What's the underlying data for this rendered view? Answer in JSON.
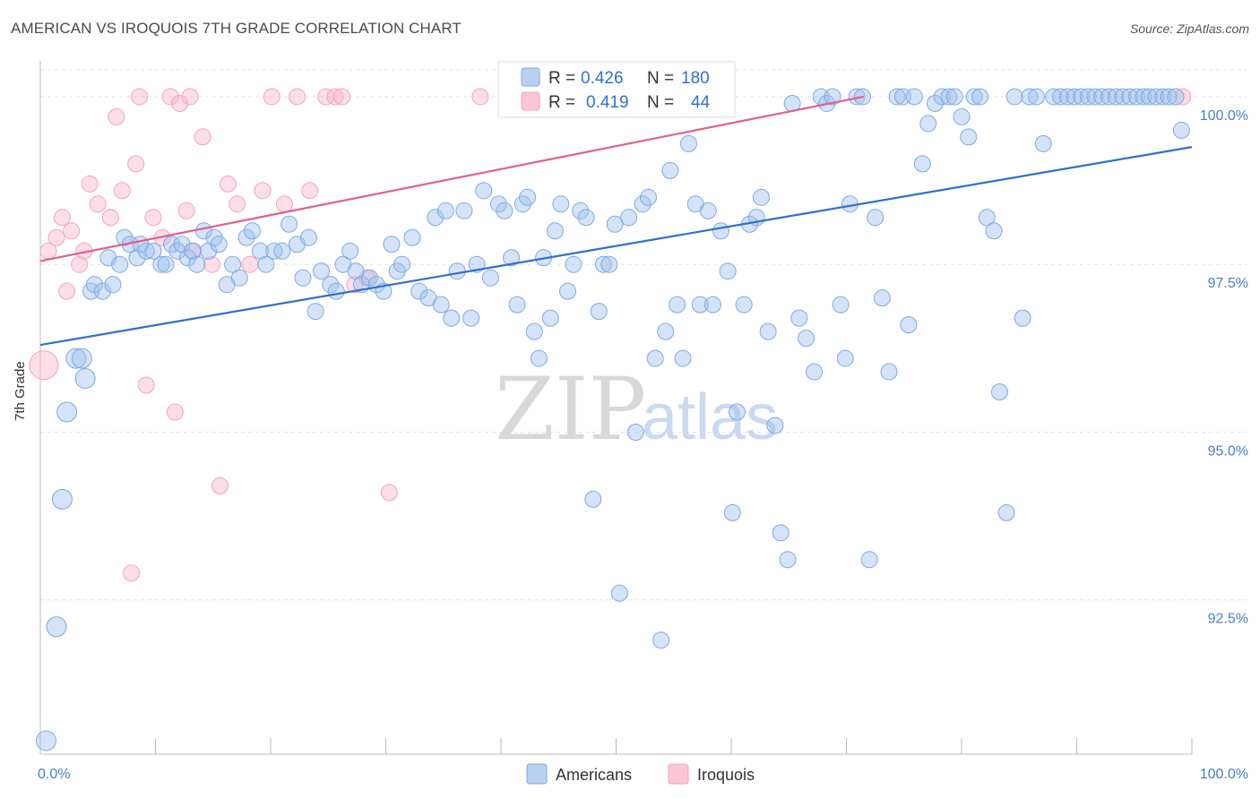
{
  "title": "AMERICAN VS IROQUOIS 7TH GRADE CORRELATION CHART",
  "source": "Source: ZipAtlas.com",
  "chart_data": {
    "type": "scatter",
    "title": "AMERICAN VS IROQUOIS 7TH GRADE CORRELATION CHART",
    "xlabel": "",
    "ylabel": "7th Grade",
    "xlim": [
      0,
      100
    ],
    "ylim": [
      90.2,
      100.4
    ],
    "x_tick_labels": [
      "0.0%",
      "100.0%"
    ],
    "y_ticks": [
      92.5,
      95.0,
      97.5,
      100.0
    ],
    "y_tick_labels": [
      "92.5%",
      "95.0%",
      "97.5%",
      "100.0%"
    ],
    "grid": true,
    "legend": {
      "americans": {
        "r_label": "R = ",
        "r": "0.426",
        "n_label": "N = ",
        "n": "180"
      },
      "iroquois": {
        "r_label": "R = ",
        "r": "0.419",
        "n_label": "N = ",
        "n": "44"
      }
    },
    "series": [
      {
        "name": "Americans",
        "color": "#7fa9e3",
        "trend_color": "#2f6fd0",
        "trend": {
          "x": [
            0,
            100
          ],
          "y": [
            96.3,
            99.25
          ]
        },
        "points": [
          [
            0.5,
            90.4
          ],
          [
            1.4,
            92.1
          ],
          [
            1.9,
            94.0
          ],
          [
            2.3,
            95.3
          ],
          [
            3.1,
            96.1
          ],
          [
            3.6,
            96.1
          ],
          [
            3.9,
            95.8
          ],
          [
            4.4,
            97.1
          ],
          [
            4.7,
            97.2
          ],
          [
            5.4,
            97.1
          ],
          [
            5.9,
            97.6
          ],
          [
            6.3,
            97.2
          ],
          [
            6.9,
            97.5
          ],
          [
            7.3,
            97.9
          ],
          [
            7.8,
            97.8
          ],
          [
            8.4,
            97.6
          ],
          [
            8.7,
            97.8
          ],
          [
            9.2,
            97.7
          ],
          [
            9.8,
            97.7
          ],
          [
            10.5,
            97.5
          ],
          [
            10.9,
            97.5
          ],
          [
            11.4,
            97.8
          ],
          [
            11.9,
            97.7
          ],
          [
            12.3,
            97.8
          ],
          [
            12.8,
            97.6
          ],
          [
            13.2,
            97.7
          ],
          [
            13.6,
            97.5
          ],
          [
            14.2,
            98.0
          ],
          [
            14.6,
            97.7
          ],
          [
            15.1,
            97.9
          ],
          [
            15.5,
            97.8
          ],
          [
            16.2,
            97.2
          ],
          [
            16.7,
            97.5
          ],
          [
            17.3,
            97.3
          ],
          [
            17.9,
            97.9
          ],
          [
            18.4,
            98.0
          ],
          [
            19.1,
            97.7
          ],
          [
            19.6,
            97.5
          ],
          [
            20.3,
            97.7
          ],
          [
            21.0,
            97.7
          ],
          [
            21.6,
            98.1
          ],
          [
            22.3,
            97.8
          ],
          [
            22.8,
            97.3
          ],
          [
            23.3,
            97.9
          ],
          [
            23.9,
            96.8
          ],
          [
            24.4,
            97.4
          ],
          [
            25.2,
            97.2
          ],
          [
            25.7,
            97.1
          ],
          [
            26.3,
            97.5
          ],
          [
            26.9,
            97.7
          ],
          [
            27.4,
            97.4
          ],
          [
            27.9,
            97.2
          ],
          [
            28.6,
            97.3
          ],
          [
            29.2,
            97.2
          ],
          [
            29.8,
            97.1
          ],
          [
            30.5,
            97.8
          ],
          [
            31.0,
            97.4
          ],
          [
            31.4,
            97.5
          ],
          [
            32.3,
            97.9
          ],
          [
            32.9,
            97.1
          ],
          [
            33.7,
            97.0
          ],
          [
            34.3,
            98.2
          ],
          [
            34.8,
            96.9
          ],
          [
            35.2,
            98.3
          ],
          [
            35.7,
            96.7
          ],
          [
            36.2,
            97.4
          ],
          [
            36.8,
            98.3
          ],
          [
            37.4,
            96.7
          ],
          [
            37.9,
            97.5
          ],
          [
            38.5,
            98.6
          ],
          [
            39.1,
            97.3
          ],
          [
            39.8,
            98.4
          ],
          [
            40.3,
            98.3
          ],
          [
            40.9,
            97.6
          ],
          [
            41.4,
            96.9
          ],
          [
            41.9,
            98.4
          ],
          [
            42.3,
            98.5
          ],
          [
            42.9,
            96.5
          ],
          [
            43.3,
            96.1
          ],
          [
            43.7,
            97.6
          ],
          [
            44.3,
            96.7
          ],
          [
            44.7,
            98.0
          ],
          [
            45.2,
            98.4
          ],
          [
            45.8,
            97.1
          ],
          [
            46.3,
            97.5
          ],
          [
            46.9,
            98.3
          ],
          [
            47.4,
            98.2
          ],
          [
            48.0,
            94.0
          ],
          [
            48.5,
            96.8
          ],
          [
            48.9,
            97.5
          ],
          [
            49.4,
            97.5
          ],
          [
            49.9,
            98.1
          ],
          [
            50.3,
            92.6
          ],
          [
            51.1,
            98.2
          ],
          [
            51.7,
            95.0
          ],
          [
            52.3,
            98.4
          ],
          [
            52.8,
            98.5
          ],
          [
            53.4,
            96.1
          ],
          [
            53.9,
            91.9
          ],
          [
            54.3,
            96.5
          ],
          [
            54.7,
            98.9
          ],
          [
            55.3,
            96.9
          ],
          [
            55.8,
            96.1
          ],
          [
            56.3,
            99.3
          ],
          [
            56.9,
            98.4
          ],
          [
            57.3,
            96.9
          ],
          [
            58.0,
            98.3
          ],
          [
            58.4,
            96.9
          ],
          [
            59.1,
            98.0
          ],
          [
            59.7,
            97.4
          ],
          [
            60.1,
            93.8
          ],
          [
            60.5,
            95.3
          ],
          [
            61.1,
            96.9
          ],
          [
            61.6,
            98.1
          ],
          [
            62.2,
            98.2
          ],
          [
            62.6,
            98.5
          ],
          [
            63.2,
            96.5
          ],
          [
            63.8,
            95.1
          ],
          [
            64.3,
            93.5
          ],
          [
            64.9,
            93.1
          ],
          [
            65.3,
            99.9
          ],
          [
            65.9,
            96.7
          ],
          [
            66.5,
            96.4
          ],
          [
            67.2,
            95.9
          ],
          [
            67.8,
            100.0
          ],
          [
            68.3,
            99.9
          ],
          [
            68.8,
            100.0
          ],
          [
            69.5,
            96.9
          ],
          [
            69.9,
            96.1
          ],
          [
            70.3,
            98.4
          ],
          [
            70.9,
            100.0
          ],
          [
            71.4,
            100.0
          ],
          [
            72.0,
            93.1
          ],
          [
            72.5,
            98.2
          ],
          [
            73.1,
            97.0
          ],
          [
            73.7,
            95.9
          ],
          [
            74.4,
            100.0
          ],
          [
            74.9,
            100.0
          ],
          [
            75.4,
            96.6
          ],
          [
            75.9,
            100.0
          ],
          [
            76.6,
            99.0
          ],
          [
            77.1,
            99.6
          ],
          [
            77.7,
            99.9
          ],
          [
            78.3,
            100.0
          ],
          [
            78.9,
            100.0
          ],
          [
            79.4,
            100.0
          ],
          [
            80.0,
            99.7
          ],
          [
            80.6,
            99.4
          ],
          [
            81.1,
            100.0
          ],
          [
            81.6,
            100.0
          ],
          [
            82.2,
            98.2
          ],
          [
            82.8,
            98.0
          ],
          [
            83.3,
            95.6
          ],
          [
            83.9,
            93.8
          ],
          [
            84.6,
            100.0
          ],
          [
            85.3,
            96.7
          ],
          [
            85.9,
            100.0
          ],
          [
            86.5,
            100.0
          ],
          [
            87.1,
            99.3
          ],
          [
            88.0,
            100.0
          ],
          [
            88.6,
            100.0
          ],
          [
            89.2,
            100.0
          ],
          [
            89.8,
            100.0
          ],
          [
            90.4,
            100.0
          ],
          [
            91.0,
            100.0
          ],
          [
            91.6,
            100.0
          ],
          [
            92.2,
            100.0
          ],
          [
            92.8,
            100.0
          ],
          [
            93.4,
            100.0
          ],
          [
            94.0,
            100.0
          ],
          [
            94.6,
            100.0
          ],
          [
            95.2,
            100.0
          ],
          [
            95.8,
            100.0
          ],
          [
            96.3,
            100.0
          ],
          [
            96.9,
            100.0
          ],
          [
            97.5,
            100.0
          ],
          [
            98.0,
            100.0
          ],
          [
            98.6,
            100.0
          ],
          [
            99.1,
            99.5
          ]
        ]
      },
      {
        "name": "Iroquois",
        "color": "#f4a3bb",
        "trend_color": "#e0608a",
        "trend": {
          "x": [
            0,
            71.5
          ],
          "y": [
            97.55,
            100.0
          ]
        },
        "points": [
          [
            0.3,
            96.0
          ],
          [
            0.7,
            97.7
          ],
          [
            1.4,
            97.9
          ],
          [
            1.9,
            98.2
          ],
          [
            2.3,
            97.1
          ],
          [
            2.7,
            98.0
          ],
          [
            3.4,
            97.5
          ],
          [
            3.8,
            97.7
          ],
          [
            4.3,
            98.7
          ],
          [
            5.0,
            98.4
          ],
          [
            6.1,
            98.2
          ],
          [
            6.6,
            99.7
          ],
          [
            7.1,
            98.6
          ],
          [
            7.9,
            92.9
          ],
          [
            8.3,
            99.0
          ],
          [
            8.6,
            100.0
          ],
          [
            9.2,
            95.7
          ],
          [
            9.8,
            98.2
          ],
          [
            10.6,
            97.9
          ],
          [
            11.3,
            100.0
          ],
          [
            11.7,
            95.3
          ],
          [
            12.1,
            99.9
          ],
          [
            12.7,
            98.3
          ],
          [
            13.0,
            100.0
          ],
          [
            13.3,
            97.7
          ],
          [
            14.1,
            99.4
          ],
          [
            14.9,
            97.5
          ],
          [
            15.6,
            94.2
          ],
          [
            16.3,
            98.7
          ],
          [
            17.1,
            98.4
          ],
          [
            18.2,
            97.5
          ],
          [
            19.3,
            98.6
          ],
          [
            20.1,
            100.0
          ],
          [
            21.2,
            98.4
          ],
          [
            22.3,
            100.0
          ],
          [
            23.4,
            98.6
          ],
          [
            24.8,
            100.0
          ],
          [
            25.6,
            100.0
          ],
          [
            26.2,
            100.0
          ],
          [
            27.3,
            97.2
          ],
          [
            28.4,
            97.3
          ],
          [
            30.3,
            94.1
          ],
          [
            38.2,
            100.0
          ],
          [
            99.2,
            100.0
          ]
        ]
      }
    ]
  },
  "bottom_legend": [
    "Americans",
    "Iroquois"
  ],
  "watermark": {
    "zip": "ZIP",
    "atlas": "atlas"
  }
}
